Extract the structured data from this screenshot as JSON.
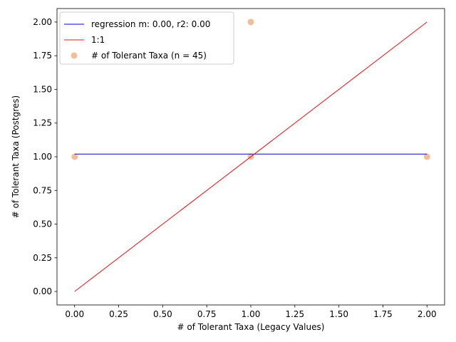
{
  "chart_data": {
    "type": "scatter",
    "title": "",
    "xlabel": "# of Tolerant Taxa (Legacy Values)",
    "ylabel": "# of Tolerant Taxa (Postgres)",
    "xlim": [
      -0.1,
      2.1
    ],
    "ylim": [
      -0.1,
      2.1
    ],
    "x_ticks": [
      "0.00",
      "0.25",
      "0.50",
      "0.75",
      "1.00",
      "1.25",
      "1.50",
      "1.75",
      "2.00"
    ],
    "y_ticks": [
      "0.00",
      "0.25",
      "0.50",
      "0.75",
      "1.00",
      "1.25",
      "1.50",
      "1.75",
      "2.00"
    ],
    "grid": false,
    "legend_position": "top-left",
    "lines": [
      {
        "name": "regression m: 0.00, r2: 0.00",
        "color": "#0000cc",
        "x": [
          0,
          2
        ],
        "y": [
          1.02,
          1.02
        ]
      },
      {
        "name": "1:1",
        "color": "#ee1111",
        "x": [
          0,
          2
        ],
        "y": [
          0,
          2
        ]
      }
    ],
    "scatter": {
      "name": "# of Tolerant Taxa (n = 45)",
      "color": "#e8935a",
      "x": [
        0,
        1,
        1,
        2
      ],
      "y": [
        1,
        1,
        2,
        1
      ]
    }
  }
}
